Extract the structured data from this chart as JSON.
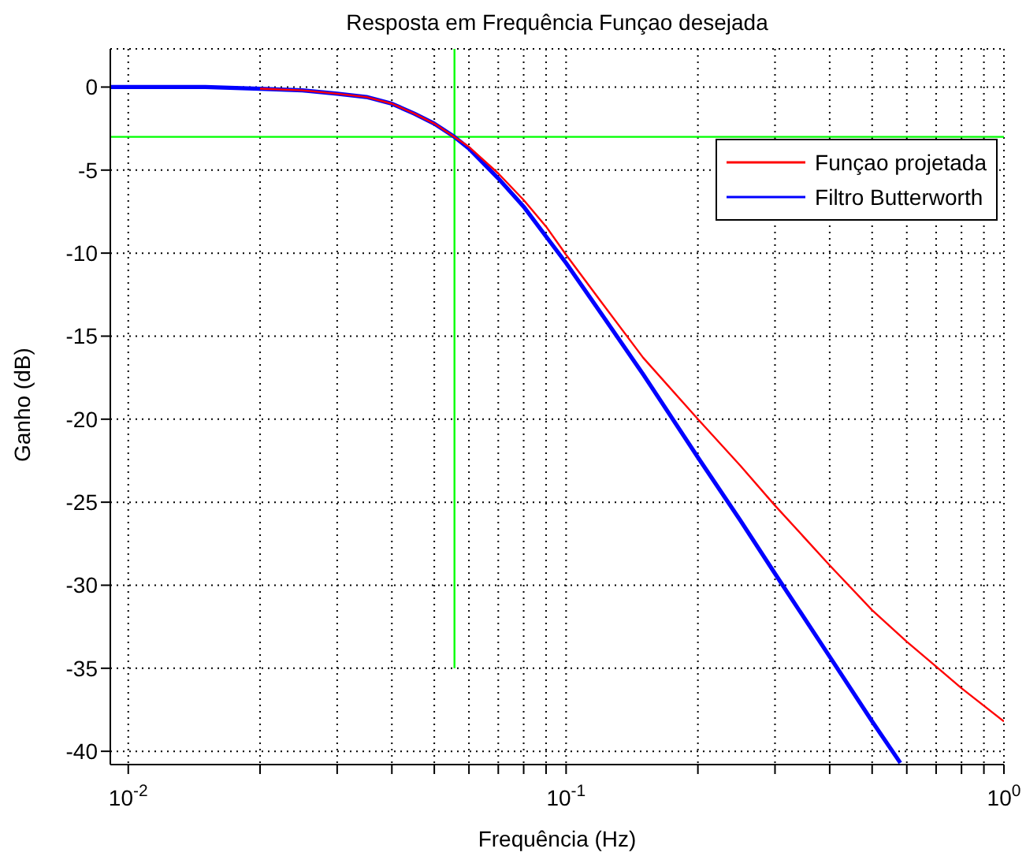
{
  "chart_data": {
    "type": "line",
    "title": "Resposta em Frequência Funçao desejada",
    "xlabel": "Frequência (Hz)",
    "ylabel": "Ganho (dB)",
    "log": "x",
    "grid": true,
    "legend": "top right",
    "line_style": "solid",
    "marker": "none",
    "xlim": [
      0.0091,
      1
    ],
    "ylim": [
      -40.8,
      2.3
    ],
    "xticks": [
      {
        "value": 0.01,
        "label": "10$^{-2}$"
      },
      {
        "value": 0.02,
        "label": null
      },
      {
        "value": 0.03,
        "label": null
      },
      {
        "value": 0.04,
        "label": null
      },
      {
        "value": 0.05,
        "label": null
      },
      {
        "value": 0.06,
        "label": null
      },
      {
        "value": 0.07,
        "label": null
      },
      {
        "value": 0.08,
        "label": null
      },
      {
        "value": 0.09,
        "label": null
      },
      {
        "value": 0.1,
        "label": "10$^{-1}$"
      },
      {
        "value": 0.2,
        "label": null
      },
      {
        "value": 0.3,
        "label": null
      },
      {
        "value": 0.4,
        "label": null
      },
      {
        "value": 0.5,
        "label": null
      },
      {
        "value": 0.6,
        "label": null
      },
      {
        "value": 0.7,
        "label": null
      },
      {
        "value": 0.8,
        "label": null
      },
      {
        "value": 0.9,
        "label": null
      },
      {
        "value": 1,
        "label": "10$^{0}$"
      }
    ],
    "yticks": [
      -40,
      -35,
      -30,
      -25,
      -20,
      -15,
      -10,
      -5,
      0
    ],
    "ref_lines": [
      {
        "axis": "y",
        "value": -3,
        "color": "#00ff00"
      }
    ],
    "series": [
      {
        "name": "Funçao projetada",
        "color": "#ff0000",
        "x": [
          0.02,
          0.025,
          0.03,
          0.035,
          0.04,
          0.045,
          0.05,
          0.0556,
          0.06,
          0.07,
          0.08,
          0.09,
          0.1,
          0.12,
          0.15,
          0.2,
          0.25,
          0.3,
          0.4,
          0.5,
          0.6,
          0.7,
          0.8,
          1
        ],
        "values": [
          -0.1,
          -0.2,
          -0.4,
          -0.6,
          -1,
          -1.6,
          -2.2,
          -3,
          -3.6,
          -5.2,
          -6.8,
          -8.4,
          -10.1,
          -12.9,
          -16.3,
          -20,
          -22.8,
          -25.2,
          -28.8,
          -31.5,
          -33.4,
          -34.9,
          -36.2,
          -38.2
        ]
      },
      {
        "name": "Filtro Butterworth",
        "color": "#0000ff",
        "x": [
          0.0091,
          0.015,
          0.02,
          0.025,
          0.03,
          0.035,
          0.04,
          0.045,
          0.05,
          0.0556,
          0.06,
          0.07,
          0.08,
          0.09,
          0.1,
          0.12,
          0.15,
          0.2,
          0.25,
          0.3,
          0.4,
          0.5,
          0.58
        ],
        "values": [
          0,
          0,
          -0.1,
          -0.2,
          -0.4,
          -0.6,
          -1,
          -1.6,
          -2.2,
          -3,
          -3.7,
          -5.5,
          -7.2,
          -9,
          -10.6,
          -13.6,
          -17.3,
          -22.3,
          -26.1,
          -29.3,
          -34.3,
          -38.2,
          -40.7
        ]
      },
      {
        "color": "#00ff00",
        "x": [
          0.0556,
          0.0556
        ],
        "values": [
          2.3,
          -35
        ]
      }
    ]
  }
}
